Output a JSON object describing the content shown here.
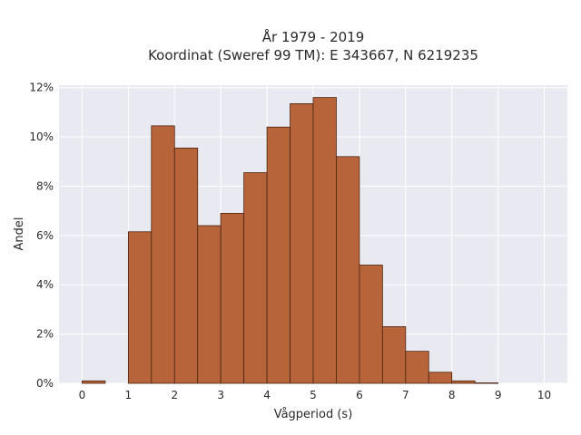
{
  "chart_data": {
    "type": "bar",
    "title": "År 1979 - 2019",
    "subtitle": "Koordinat (Sweref 99 TM): E 343667, N 6219235",
    "xlabel": "Vågperiod (s)",
    "ylabel": "Andel",
    "xlim": [
      -0.5,
      10.5
    ],
    "ylim": [
      0,
      12.1
    ],
    "x_ticks": [
      0,
      1,
      2,
      3,
      4,
      5,
      6,
      7,
      8,
      9,
      10
    ],
    "y_ticks": [
      0,
      2,
      4,
      6,
      8,
      10,
      12
    ],
    "y_tick_suffix": "%",
    "grid": true,
    "bar_color": "#b8643a",
    "bar_edge_color": "#4a2410",
    "plot_bg": "#e9e9f1",
    "bins": [
      {
        "start": 0.0,
        "end": 0.5,
        "value": 0.1
      },
      {
        "start": 0.5,
        "end": 1.0,
        "value": 0.0
      },
      {
        "start": 1.0,
        "end": 1.5,
        "value": 6.15
      },
      {
        "start": 1.5,
        "end": 2.0,
        "value": 10.45
      },
      {
        "start": 2.0,
        "end": 2.5,
        "value": 9.55
      },
      {
        "start": 2.5,
        "end": 3.0,
        "value": 6.4
      },
      {
        "start": 3.0,
        "end": 3.5,
        "value": 6.9
      },
      {
        "start": 3.5,
        "end": 4.0,
        "value": 8.55
      },
      {
        "start": 4.0,
        "end": 4.5,
        "value": 10.4
      },
      {
        "start": 4.5,
        "end": 5.0,
        "value": 11.35
      },
      {
        "start": 5.0,
        "end": 5.5,
        "value": 11.6
      },
      {
        "start": 5.5,
        "end": 6.0,
        "value": 9.2
      },
      {
        "start": 6.0,
        "end": 6.5,
        "value": 4.8
      },
      {
        "start": 6.5,
        "end": 7.0,
        "value": 2.3
      },
      {
        "start": 7.0,
        "end": 7.5,
        "value": 1.3
      },
      {
        "start": 7.5,
        "end": 8.0,
        "value": 0.45
      },
      {
        "start": 8.0,
        "end": 8.5,
        "value": 0.1
      },
      {
        "start": 8.5,
        "end": 9.0,
        "value": 0.02
      }
    ]
  }
}
